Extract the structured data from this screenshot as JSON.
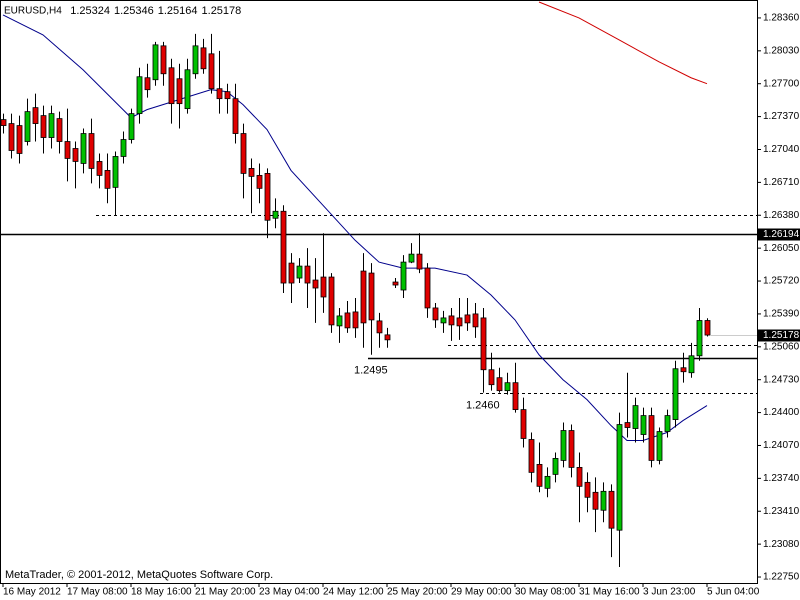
{
  "chart_data": {
    "type": "candlestick",
    "title": "EURUSD,H4",
    "footer": "MetaTrader, © 2001-2012, MetaQuotes Software Corp.",
    "categories": [
      "16 May 2012",
      null,
      null,
      null,
      null,
      null,
      null,
      null,
      "17 May 08:00",
      null,
      null,
      null,
      null,
      null,
      null,
      null,
      "18 May 16:00",
      null,
      null,
      null,
      null,
      null,
      null,
      null,
      "21 May 20:00",
      null,
      null,
      null,
      null,
      null,
      null,
      null,
      "23 May 04:00",
      null,
      null,
      null,
      null,
      null,
      null,
      null,
      "24 May 12:00",
      null,
      null,
      null,
      null,
      null,
      null,
      null,
      "25 May 20:00",
      null,
      null,
      null,
      null,
      null,
      null,
      null,
      "29 May 00:00",
      null,
      null,
      null,
      null,
      null,
      null,
      null,
      "30 May 08:00",
      null,
      null,
      null,
      null,
      null,
      null,
      null,
      "31 May 16:00",
      null,
      null,
      null,
      null,
      null,
      null,
      null,
      "3 Jun 23:00",
      null,
      null,
      null,
      null,
      null,
      null,
      null,
      "5 Jun 04:00"
    ],
    "open": [
      1.2734,
      1.273,
      1.2728,
      1.2712,
      1.2746,
      1.2738,
      1.2716,
      1.2735,
      1.2712,
      1.2705,
      1.269,
      1.272,
      1.2692,
      1.2683,
      1.2666,
      1.2697,
      1.2714,
      1.274,
      1.2776,
      1.2774,
      1.2808,
      1.2786,
      1.2775,
      1.2745,
      1.278,
      1.2806,
      1.28,
      1.2765,
      1.2762,
      1.2755,
      1.272,
      1.2685,
      1.2678,
      1.268,
      1.2635,
      1.2642,
      1.259,
      1.2575,
      1.2587,
      1.2573,
      1.2576,
      1.2576,
      1.2527,
      1.254,
      1.2541,
      1.2582,
      1.258,
      1.2532,
      1.2518,
      1.2571,
      1.2563,
      1.2591,
      1.2599,
      1.2585,
      1.2545,
      1.253,
      1.2537,
      1.2535,
      1.2538,
      1.2539,
      1.2535,
      1.2483,
      1.2475,
      1.2462,
      1.247,
      1.2443,
      1.2413,
      1.2388,
      1.2364,
      1.2378,
      1.2392,
      1.2422,
      1.2385,
      1.237,
      1.236,
      1.2342,
      1.2361,
      1.2322,
      1.243,
      1.2424,
      1.2418,
      1.2437,
      1.2392,
      1.2421,
      1.2433,
      1.2485,
      1.248,
      1.2497,
      1.25324
    ],
    "high": [
      1.274,
      1.274,
      1.2738,
      1.2755,
      1.276,
      1.2748,
      1.2748,
      1.2742,
      1.2745,
      1.2712,
      1.2725,
      1.2735,
      1.27,
      1.27,
      1.2702,
      1.2722,
      1.2745,
      1.2786,
      1.279,
      1.2812,
      1.2812,
      1.2795,
      1.279,
      1.2795,
      1.282,
      1.2815,
      1.282,
      1.2803,
      1.277,
      1.277,
      1.273,
      1.2695,
      1.269,
      1.2685,
      1.2655,
      1.2648,
      1.26,
      1.2595,
      1.2605,
      1.2595,
      1.262,
      1.258,
      1.2545,
      1.2552,
      1.2555,
      1.26,
      1.259,
      1.254,
      1.2525,
      1.2575,
      1.2598,
      1.261,
      1.262,
      1.259,
      1.255,
      1.2542,
      1.2545,
      1.2555,
      1.2555,
      1.255,
      1.2545,
      1.25,
      1.2485,
      1.248,
      1.249,
      1.2455,
      1.242,
      1.241,
      1.2385,
      1.24,
      1.243,
      1.2428,
      1.24,
      1.238,
      1.2375,
      1.237,
      1.2368,
      1.244,
      1.248,
      1.2455,
      1.2445,
      1.2445,
      1.2425,
      1.2443,
      1.2492,
      1.25,
      1.251,
      1.2545,
      1.25346
    ],
    "low": [
      1.272,
      1.2695,
      1.269,
      1.2708,
      1.2712,
      1.27,
      1.2705,
      1.27,
      1.2672,
      1.2665,
      1.268,
      1.267,
      1.2665,
      1.265,
      1.2638,
      1.269,
      1.271,
      1.273,
      1.2756,
      1.2768,
      1.2768,
      1.273,
      1.2725,
      1.274,
      1.2775,
      1.278,
      1.276,
      1.274,
      1.274,
      1.271,
      1.2655,
      1.264,
      1.265,
      1.2615,
      1.2625,
      1.256,
      1.255,
      1.257,
      1.2545,
      1.253,
      1.254,
      1.252,
      1.251,
      1.252,
      1.2515,
      1.2505,
      1.2498,
      1.2505,
      1.2505,
      1.2565,
      1.2555,
      1.259,
      1.258,
      1.2535,
      1.2525,
      1.252,
      1.2512,
      1.2513,
      1.2522,
      1.2515,
      1.246,
      1.2462,
      1.246,
      1.2458,
      1.244,
      1.2405,
      1.237,
      1.236,
      1.2355,
      1.237,
      1.2385,
      1.2375,
      1.233,
      1.234,
      1.232,
      1.233,
      1.2295,
      1.2285,
      1.2415,
      1.241,
      1.241,
      1.2385,
      1.2388,
      1.2415,
      1.2425,
      1.247,
      1.2475,
      1.2492,
      1.25164
    ],
    "close": [
      1.2728,
      1.2703,
      1.27,
      1.2742,
      1.273,
      1.2716,
      1.274,
      1.2712,
      1.2695,
      1.2692,
      1.272,
      1.2685,
      1.2678,
      1.2665,
      1.2697,
      1.2714,
      1.274,
      1.2777,
      1.2764,
      1.2809,
      1.278,
      1.275,
      1.275,
      1.2784,
      1.2808,
      1.2785,
      1.2765,
      1.2755,
      1.2755,
      1.272,
      1.268,
      1.2677,
      1.2665,
      1.2633,
      1.2642,
      1.257,
      1.257,
      1.2587,
      1.257,
      1.2565,
      1.2556,
      1.2528,
      1.2537,
      1.2525,
      1.2525,
      1.253,
      1.2533,
      1.252,
      1.2513,
      1.2568,
      1.2591,
      1.2599,
      1.2584,
      1.2545,
      1.2533,
      1.2535,
      1.2528,
      1.2527,
      1.253,
      1.2526,
      1.2483,
      1.2468,
      1.2462,
      1.247,
      1.2443,
      1.2414,
      1.238,
      1.2366,
      1.2376,
      1.2394,
      1.2422,
      1.2385,
      1.2366,
      1.2355,
      1.2343,
      1.2361,
      1.2324,
      1.2428,
      1.2425,
      1.2447,
      1.2437,
      1.2392,
      1.2421,
      1.2437,
      1.2484,
      1.2481,
      1.2497,
      1.25324,
      1.25178
    ],
    "up_color": "#00c000",
    "down_color": "#e00000",
    "ylim": [
      1.2269,
      1.2854
    ],
    "yticks": [
      {
        "value": 1.2836,
        "label": "1.28360"
      },
      {
        "value": 1.2803,
        "label": "1.28030"
      },
      {
        "value": 1.277,
        "label": "1.27700"
      },
      {
        "value": 1.2737,
        "label": "1.27370"
      },
      {
        "value": 1.2704,
        "label": "1.27040"
      },
      {
        "value": 1.2671,
        "label": "1.26710"
      },
      {
        "value": 1.2638,
        "label": "1.26380"
      },
      {
        "value": 1.2605,
        "label": "1.26050"
      },
      {
        "value": 1.2572,
        "label": "1.25720"
      },
      {
        "value": 1.2539,
        "label": "1.25390"
      },
      {
        "value": 1.2506,
        "label": "1.25060"
      },
      {
        "value": 1.2473,
        "label": "1.24730"
      },
      {
        "value": 1.244,
        "label": "1.24400"
      },
      {
        "value": 1.2407,
        "label": "1.24070"
      },
      {
        "value": 1.2374,
        "label": "1.23740"
      },
      {
        "value": 1.2341,
        "label": "1.23410"
      },
      {
        "value": 1.2308,
        "label": "1.23080"
      },
      {
        "value": 1.2275,
        "label": "1.22750"
      }
    ],
    "lines": [
      {
        "color": "#00008b",
        "x": [
          0,
          5,
          10,
          15,
          16,
          18,
          22,
          26,
          28,
          30,
          33,
          36,
          40,
          44,
          47,
          50,
          54,
          58,
          61,
          64,
          67,
          70,
          73,
          76,
          78,
          80,
          83,
          85,
          88
        ],
        "values": [
          1.2839,
          1.2819,
          1.2784,
          1.2744,
          1.2736,
          1.2744,
          1.2754,
          1.2764,
          1.2762,
          1.2749,
          1.2724,
          1.2683,
          1.2648,
          1.2613,
          1.2591,
          1.2585,
          1.2585,
          1.2578,
          1.2558,
          1.2533,
          1.2498,
          1.2473,
          1.2453,
          1.2427,
          1.2412,
          1.2412,
          1.242,
          1.2432,
          1.2447
        ]
      },
      {
        "color": "#d00000",
        "x": [
          67,
          72,
          77,
          82,
          86,
          88
        ],
        "values": [
          1.2852,
          1.2836,
          1.2814,
          1.2792,
          1.2776,
          1.277
        ]
      }
    ],
    "hlines": [
      {
        "value": 1.26194,
        "start": 0,
        "style": "solid",
        "axis_label": true
      },
      {
        "value": 1.2638,
        "start": 12,
        "style": "dashed"
      },
      {
        "value": 1.2495,
        "start": 46,
        "style": "solid",
        "text": "1.2495"
      },
      {
        "value": 1.2508,
        "start": 56,
        "style": "dashed"
      },
      {
        "value": 1.246,
        "start": 60,
        "style": "dashed",
        "text": "1.2460"
      }
    ]
  }
}
